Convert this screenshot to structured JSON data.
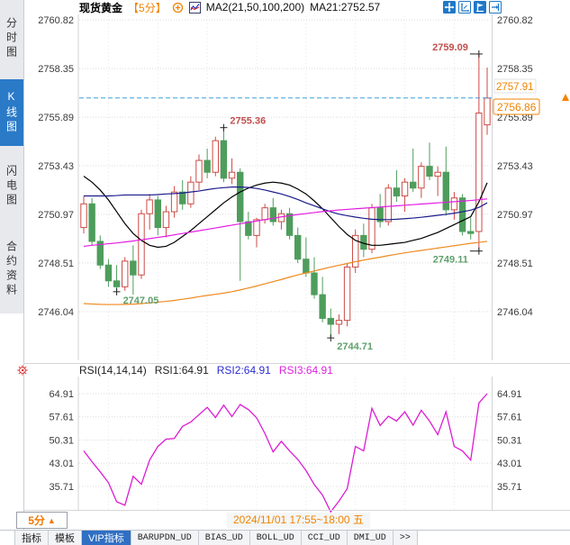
{
  "header": {
    "symbol": "现货黄金",
    "period_tag": "【5分】",
    "indicator_label": "MA2(21,50,100,200)",
    "ma_value_label": "MA21:2752.57"
  },
  "sidebar": {
    "items": [
      {
        "name": "time-share-chart",
        "label": "分时图",
        "active": false
      },
      {
        "name": "kline-chart",
        "label": "K线图",
        "active": true
      },
      {
        "name": "lightning-chart",
        "label": "闪电图",
        "active": false
      },
      {
        "name": "contract-info",
        "label": "合约资料",
        "active": false
      }
    ]
  },
  "toolbar_icons": [
    "pan-icon",
    "axis-scale-icon",
    "chart-style-icon",
    "pop-out-icon"
  ],
  "rsi_header": {
    "title": "RSI(14,14,14)",
    "rsi1": "RSI1:64.91",
    "rsi2": "RSI2:64.91",
    "rsi3": "RSI3:64.91",
    "rsi1_color": "#1a1a1a",
    "rsi2_color": "#2b2bd5",
    "rsi3_color": "#e020e0"
  },
  "bottom": {
    "period_label": "5分",
    "period_arrow": "▲",
    "datetime_label": "2024/11/01 17:55~18:00 五",
    "tabs": [
      {
        "name": "indicators",
        "label": "指标",
        "active": false
      },
      {
        "name": "templates",
        "label": "模板",
        "active": false
      },
      {
        "name": "vip-indicators",
        "label": "VIP指标",
        "active": true
      },
      {
        "name": "barupdn-ud",
        "label": "BARUPDN_UD",
        "active": false
      },
      {
        "name": "bias-ud",
        "label": "BIAS_UD",
        "active": false
      },
      {
        "name": "boll-ud",
        "label": "BOLL_UD",
        "active": false
      },
      {
        "name": "cci-ud",
        "label": "CCI_UD",
        "active": false
      },
      {
        "name": "dmi-ud",
        "label": "DMI_UD",
        "active": false
      },
      {
        "name": "more-tabs",
        "label": ">>",
        "active": false
      }
    ]
  },
  "colors": {
    "up": "#cd4a45",
    "down": "#4e9d5c",
    "ma21": "#000000",
    "ma50": "#1b1b8c",
    "ma100": "#e51ce5",
    "ma200": "#ef8a1f",
    "rsi_line": "#dc1cd2",
    "current_line": "#3f9fdf",
    "accent_orange": "#f08300",
    "grid": "#dcdcdc",
    "axis_text": "#3a3a3a",
    "label_high": "#c0504d",
    "label_low": "#61a06c"
  },
  "chart_data": [
    {
      "type": "candlestick",
      "title": "现货黄金 5分 K线",
      "symbol": "现货黄金",
      "period": "5分",
      "y_ticks": [
        2760.82,
        2758.35,
        2755.89,
        2753.43,
        2750.97,
        2748.51,
        2746.04
      ],
      "ylim": [
        2743.6,
        2761.1
      ],
      "current_price": 2756.86,
      "reference_price": 2757.91,
      "ma_series": [
        {
          "name": "MA21",
          "color": "#000000",
          "values": [
            2752.9,
            2752.6,
            2752.2,
            2751.7,
            2751.1,
            2750.5,
            2750.0,
            2749.65,
            2749.4,
            2749.3,
            2749.35,
            2749.55,
            2749.85,
            2750.15,
            2750.5,
            2750.85,
            2751.2,
            2751.55,
            2751.85,
            2752.1,
            2752.3,
            2752.45,
            2752.55,
            2752.6,
            2752.55,
            2752.45,
            2752.25,
            2752.0,
            2751.65,
            2751.25,
            2750.8,
            2750.35,
            2749.95,
            2749.65,
            2749.5,
            2749.4,
            2749.4,
            2749.45,
            2749.5,
            2749.55,
            2749.65,
            2749.75,
            2749.9,
            2750.05,
            2750.25,
            2750.45,
            2750.65,
            2750.85,
            2751.6,
            2752.57
          ]
        },
        {
          "name": "MA50",
          "color": "#1b1b8c",
          "values": [
            2751.9,
            2751.9,
            2751.9,
            2751.9,
            2751.92,
            2751.95,
            2751.95,
            2751.95,
            2751.95,
            2751.97,
            2752.0,
            2752.02,
            2752.05,
            2752.1,
            2752.15,
            2752.22,
            2752.28,
            2752.32,
            2752.35,
            2752.35,
            2752.33,
            2752.28,
            2752.2,
            2752.1,
            2752.0,
            2751.87,
            2751.72,
            2751.55,
            2751.4,
            2751.25,
            2751.1,
            2750.98,
            2750.9,
            2750.83,
            2750.77,
            2750.72,
            2750.7,
            2750.7,
            2750.72,
            2750.75,
            2750.78,
            2750.82,
            2750.87,
            2750.92,
            2750.97,
            2751.03,
            2751.1,
            2751.18,
            2751.32,
            2751.55
          ]
        },
        {
          "name": "MA100",
          "color": "#e51ce5",
          "values": [
            2749.35,
            2749.4,
            2749.44,
            2749.48,
            2749.52,
            2749.57,
            2749.62,
            2749.68,
            2749.74,
            2749.8,
            2749.86,
            2749.93,
            2750.0,
            2750.07,
            2750.14,
            2750.21,
            2750.28,
            2750.35,
            2750.42,
            2750.49,
            2750.56,
            2750.63,
            2750.7,
            2750.77,
            2750.84,
            2750.9,
            2750.96,
            2751.01,
            2751.06,
            2751.11,
            2751.15,
            2751.19,
            2751.22,
            2751.25,
            2751.28,
            2751.31,
            2751.34,
            2751.37,
            2751.4,
            2751.43,
            2751.46,
            2751.49,
            2751.52,
            2751.55,
            2751.58,
            2751.61,
            2751.64,
            2751.67,
            2751.71,
            2751.75
          ]
        },
        {
          "name": "MA200",
          "color": "#ef8a1f",
          "values": [
            2746.45,
            2746.43,
            2746.41,
            2746.4,
            2746.4,
            2746.41,
            2746.42,
            2746.45,
            2746.48,
            2746.52,
            2746.56,
            2746.61,
            2746.67,
            2746.73,
            2746.8,
            2746.86,
            2746.92,
            2746.98,
            2747.05,
            2747.14,
            2747.24,
            2747.34,
            2747.45,
            2747.56,
            2747.67,
            2747.79,
            2747.9,
            2748.0,
            2748.1,
            2748.2,
            2748.3,
            2748.39,
            2748.48,
            2748.57,
            2748.65,
            2748.73,
            2748.8,
            2748.88,
            2748.95,
            2749.02,
            2749.08,
            2749.14,
            2749.2,
            2749.26,
            2749.32,
            2749.38,
            2749.44,
            2749.5,
            2749.55,
            2749.6
          ]
        }
      ],
      "candles": [
        [
          2750.3,
          2751.9,
          2750.0,
          2751.5
        ],
        [
          2751.5,
          2751.8,
          2749.4,
          2749.6
        ],
        [
          2749.6,
          2749.9,
          2748.2,
          2748.4
        ],
        [
          2748.4,
          2748.7,
          2747.3,
          2747.6
        ],
        [
          2747.6,
          2748.4,
          2747.05,
          2747.3
        ],
        [
          2747.3,
          2748.8,
          2747.1,
          2748.6
        ],
        [
          2748.6,
          2749.4,
          2746.9,
          2747.9
        ],
        [
          2747.9,
          2751.2,
          2747.7,
          2751.0
        ],
        [
          2751.0,
          2752.0,
          2750.2,
          2751.7
        ],
        [
          2751.7,
          2751.9,
          2749.9,
          2750.3
        ],
        [
          2750.3,
          2751.4,
          2749.8,
          2751.1
        ],
        [
          2751.1,
          2752.4,
          2750.8,
          2752.1
        ],
        [
          2752.1,
          2752.7,
          2751.2,
          2751.5
        ],
        [
          2751.5,
          2752.9,
          2751.3,
          2752.6
        ],
        [
          2752.6,
          2754.0,
          2752.2,
          2753.7
        ],
        [
          2753.7,
          2754.3,
          2752.8,
          2753.1
        ],
        [
          2753.1,
          2754.9,
          2752.9,
          2754.7
        ],
        [
          2754.7,
          2755.36,
          2752.6,
          2752.8
        ],
        [
          2752.8,
          2753.8,
          2752.5,
          2753.1
        ],
        [
          2753.1,
          2753.3,
          2747.6,
          2750.6
        ],
        [
          2750.6,
          2751.1,
          2749.7,
          2749.9
        ],
        [
          2749.9,
          2750.8,
          2749.3,
          2750.7
        ],
        [
          2750.7,
          2751.5,
          2750.5,
          2751.3
        ],
        [
          2751.3,
          2751.8,
          2750.4,
          2750.6
        ],
        [
          2750.6,
          2751.2,
          2750.2,
          2751.0
        ],
        [
          2751.0,
          2751.3,
          2749.7,
          2749.9
        ],
        [
          2749.9,
          2750.3,
          2748.5,
          2748.7
        ],
        [
          2748.7,
          2749.8,
          2747.8,
          2748.0
        ],
        [
          2748.0,
          2748.8,
          2746.7,
          2746.9
        ],
        [
          2746.9,
          2747.8,
          2745.5,
          2745.7
        ],
        [
          2745.7,
          2746.2,
          2744.71,
          2745.4
        ],
        [
          2745.4,
          2745.9,
          2744.9,
          2745.6
        ],
        [
          2745.6,
          2748.5,
          2745.3,
          2748.3
        ],
        [
          2748.3,
          2750.2,
          2748.0,
          2749.9
        ],
        [
          2749.9,
          2750.5,
          2748.8,
          2749.2
        ],
        [
          2749.2,
          2751.5,
          2749.0,
          2751.3
        ],
        [
          2751.3,
          2752.0,
          2750.3,
          2750.6
        ],
        [
          2750.6,
          2752.5,
          2750.4,
          2752.3
        ],
        [
          2752.3,
          2753.2,
          2751.6,
          2751.9
        ],
        [
          2751.9,
          2752.8,
          2751.1,
          2752.6
        ],
        [
          2752.6,
          2754.3,
          2752.1,
          2752.3
        ],
        [
          2752.3,
          2753.6,
          2751.8,
          2753.4
        ],
        [
          2753.4,
          2754.6,
          2752.7,
          2752.9
        ],
        [
          2752.9,
          2753.4,
          2751.9,
          2753.1
        ],
        [
          2753.1,
          2754.4,
          2750.9,
          2751.2
        ],
        [
          2751.2,
          2752.1,
          2750.7,
          2751.8
        ],
        [
          2751.8,
          2752.0,
          2749.9,
          2750.1
        ],
        [
          2750.1,
          2750.8,
          2749.7,
          2750.0
        ],
        [
          2750.1,
          2759.09,
          2749.11,
          2756.1
        ],
        [
          2755.5,
          2758.4,
          2755.0,
          2756.86
        ]
      ],
      "annotations": [
        {
          "text": "2755.36",
          "bar": 17,
          "at": "high",
          "side": "right",
          "color": "#c0504d"
        },
        {
          "text": "2759.09",
          "bar": 48,
          "at": "high",
          "side": "left",
          "color": "#c0504d"
        },
        {
          "text": "2749.11",
          "bar": 48,
          "at": "low",
          "side": "left",
          "color": "#61a06c"
        },
        {
          "text": "2747.05",
          "bar": 4,
          "at": "low",
          "side": "right",
          "color": "#61a06c"
        },
        {
          "text": "2744.71",
          "bar": 30,
          "at": "low",
          "side": "right",
          "color": "#61a06c"
        }
      ]
    },
    {
      "type": "line",
      "name": "RSI",
      "color": "#dc1cd2",
      "y_ticks": [
        64.91,
        57.61,
        50.31,
        43.01,
        35.71
      ],
      "ylim": [
        26,
        70
      ],
      "values": [
        46.9,
        43.5,
        40.3,
        36.9,
        30.9,
        29.8,
        38.9,
        36.4,
        44.0,
        48.3,
        50.6,
        50.8,
        54.6,
        56.0,
        58.3,
        60.6,
        57.4,
        61.3,
        57.7,
        61.5,
        59.9,
        57.3,
        52.4,
        46.6,
        49.9,
        46.9,
        44.2,
        40.7,
        36.3,
        33.0,
        27.7,
        31.1,
        35.0,
        48.3,
        46.9,
        60.3,
        54.9,
        57.8,
        56.3,
        59.2,
        55.0,
        59.7,
        56.3,
        52.0,
        59.2,
        48.3,
        46.9,
        44.0,
        62.0,
        64.91
      ]
    }
  ]
}
